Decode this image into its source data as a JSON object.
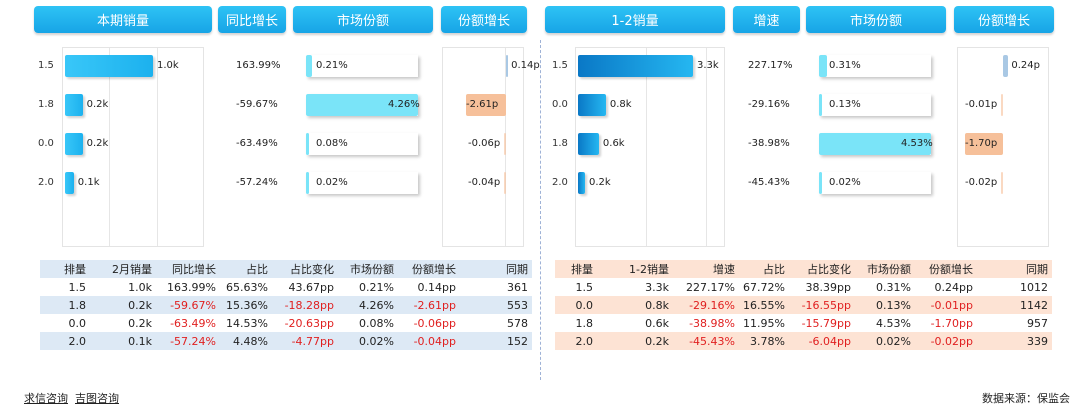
{
  "left_headers": [
    "本期销量",
    "同比增长",
    "市场份额",
    "份额增长"
  ],
  "right_headers": [
    "1-2销量",
    "增速",
    "市场份额",
    "份额增长"
  ],
  "left_chart": {
    "rows": [
      {
        "label": "1.5",
        "sales": "1.0k",
        "sales_value": 1.0,
        "yoy": "163.99%",
        "share": "0.21%",
        "share_value": 0.21,
        "share_growth": "0.14p",
        "share_growth_value": 0.14
      },
      {
        "label": "1.8",
        "sales": "0.2k",
        "sales_value": 0.2,
        "yoy": "-59.67%",
        "share": "4.26%",
        "share_value": 4.26,
        "share_growth": "-2.61p",
        "share_growth_value": -2.61
      },
      {
        "label": "0.0",
        "sales": "0.2k",
        "sales_value": 0.2,
        "yoy": "-63.49%",
        "share": "0.08%",
        "share_value": 0.08,
        "share_growth": "-0.06p",
        "share_growth_value": -0.06
      },
      {
        "label": "2.0",
        "sales": "0.1k",
        "sales_value": 0.1,
        "yoy": "-57.24%",
        "share": "0.02%",
        "share_value": 0.02,
        "share_growth": "-0.04p",
        "share_growth_value": -0.04
      }
    ]
  },
  "right_chart": {
    "rows": [
      {
        "label": "1.5",
        "sales": "3.3k",
        "sales_value": 3.3,
        "yoy": "227.17%",
        "share": "0.31%",
        "share_value": 0.31,
        "share_growth": "0.24p",
        "share_growth_value": 0.24
      },
      {
        "label": "0.0",
        "sales": "0.8k",
        "sales_value": 0.8,
        "yoy": "-29.16%",
        "share": "0.13%",
        "share_value": 0.13,
        "share_growth": "-0.01p",
        "share_growth_value": -0.01
      },
      {
        "label": "1.8",
        "sales": "0.6k",
        "sales_value": 0.6,
        "yoy": "-38.98%",
        "share": "4.53%",
        "share_value": 4.53,
        "share_growth": "-1.70p",
        "share_growth_value": -1.7
      },
      {
        "label": "2.0",
        "sales": "0.2k",
        "sales_value": 0.2,
        "yoy": "-45.43%",
        "share": "0.02%",
        "share_value": 0.02,
        "share_growth": "-0.02p",
        "share_growth_value": -0.02
      }
    ]
  },
  "left_table": {
    "columns": [
      "排量",
      "2月销量",
      "同比增长",
      "占比",
      "占比变化",
      "市场份额",
      "份额增长",
      "同期"
    ],
    "rows": [
      [
        "1.5",
        "1.0k",
        "163.99%",
        "65.63%",
        "43.67pp",
        "0.21%",
        "0.14pp",
        "361"
      ],
      [
        "1.8",
        "0.2k",
        "-59.67%",
        "15.36%",
        "-18.28pp",
        "4.26%",
        "-2.61pp",
        "553"
      ],
      [
        "0.0",
        "0.2k",
        "-63.49%",
        "14.53%",
        "-20.63pp",
        "0.08%",
        "-0.06pp",
        "578"
      ],
      [
        "2.0",
        "0.1k",
        "-57.24%",
        "4.48%",
        "-4.77pp",
        "0.02%",
        "-0.04pp",
        "152"
      ]
    ]
  },
  "right_table": {
    "columns": [
      "排量",
      "1-2销量",
      "增速",
      "占比",
      "占比变化",
      "市场份额",
      "份额增长",
      "同期"
    ],
    "rows": [
      [
        "1.5",
        "3.3k",
        "227.17%",
        "67.72%",
        "38.39pp",
        "0.31%",
        "0.24pp",
        "1012"
      ],
      [
        "0.0",
        "0.8k",
        "-29.16%",
        "16.55%",
        "-16.55pp",
        "0.13%",
        "-0.01pp",
        "1142"
      ],
      [
        "1.8",
        "0.6k",
        "-38.98%",
        "11.95%",
        "-15.79pp",
        "4.53%",
        "-1.70pp",
        "957"
      ],
      [
        "2.0",
        "0.2k",
        "-45.43%",
        "3.78%",
        "-6.04pp",
        "0.02%",
        "-0.02pp",
        "339"
      ]
    ]
  },
  "footer": {
    "link1": "求信咨询",
    "link2": "吉图咨询",
    "source": "数据来源：保监会"
  },
  "colors": {
    "header": "#1fb4ee",
    "bar": "#29bdf4",
    "share_bar": "#7ae4f8",
    "negative": "#e02020",
    "salmon": "#f6c09a"
  }
}
